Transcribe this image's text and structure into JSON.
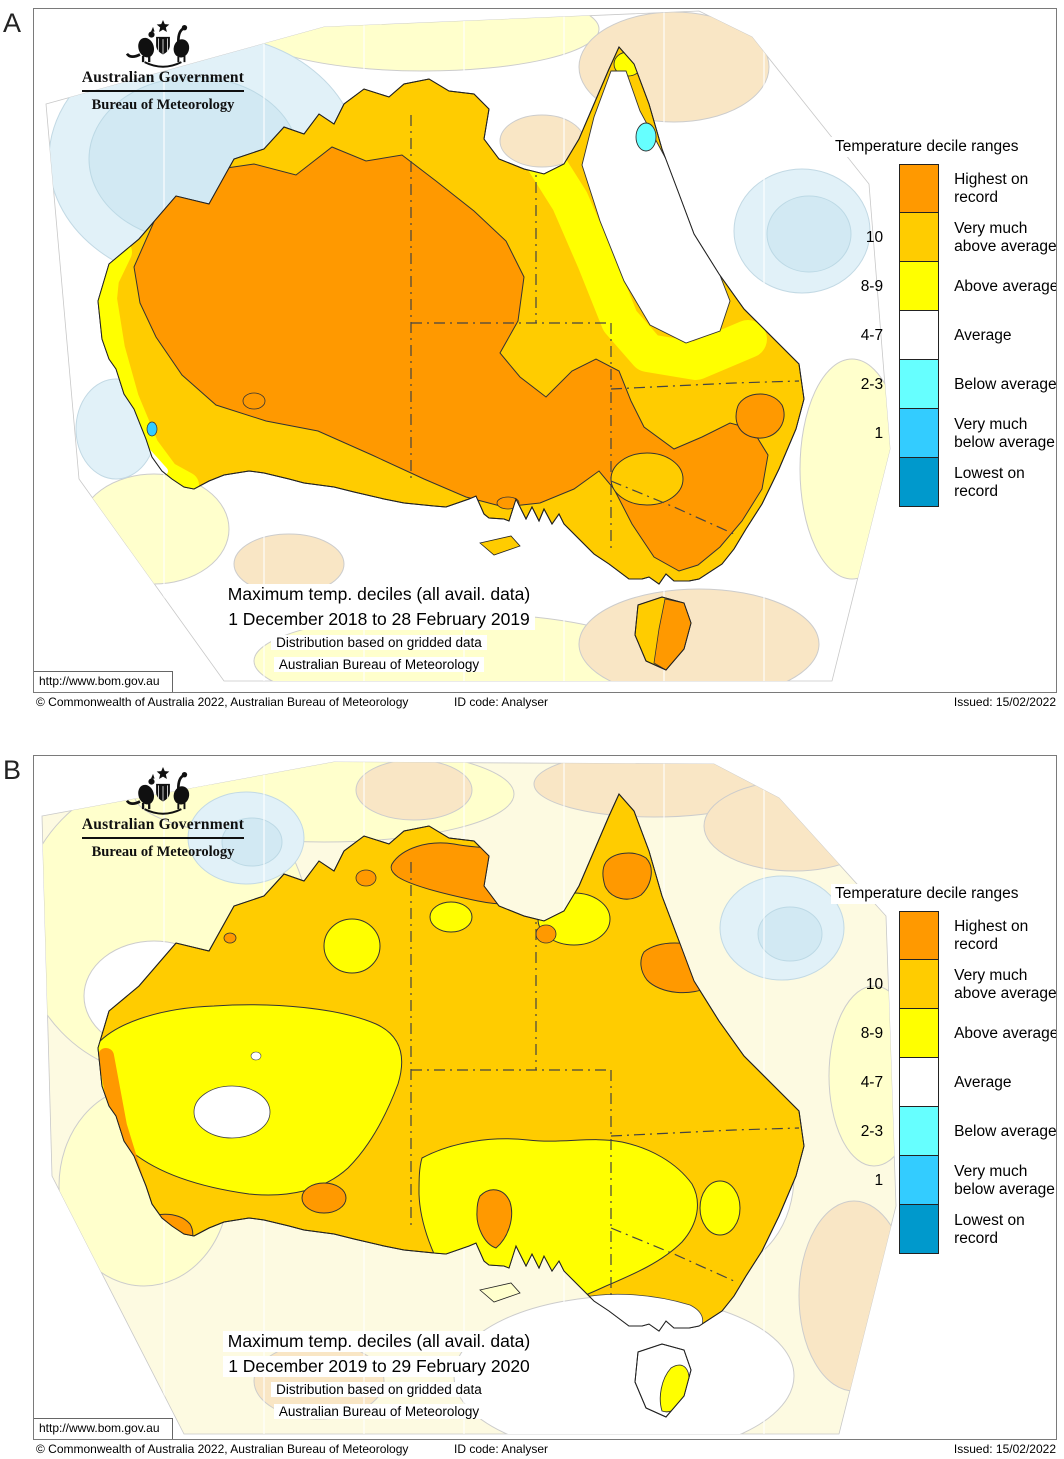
{
  "logo": {
    "line1": "Australian Government",
    "line2": "Bureau of Meteorology"
  },
  "legend": {
    "title": "Temperature decile ranges",
    "items": [
      {
        "decile": "",
        "label": "Highest on record",
        "key": "highest_on_record"
      },
      {
        "decile": "10",
        "label": "Very much above average",
        "key": "very_much_above_average"
      },
      {
        "decile": "8-9",
        "label": "Above average",
        "key": "above_average"
      },
      {
        "decile": "4-7",
        "label": "Average",
        "key": "average"
      },
      {
        "decile": "2-3",
        "label": "Below average",
        "key": "below_average"
      },
      {
        "decile": "1",
        "label": "Very much below average",
        "key": "very_much_below_average"
      },
      {
        "decile": "",
        "label": "Lowest on record",
        "key": "lowest_on_record"
      }
    ]
  },
  "palette": {
    "highest_on_record": "#FF9900",
    "very_much_above_average": "#FFCC00",
    "above_average": "#FFFF00",
    "average": "#FFFFFF",
    "below_average": "#66FFFF",
    "very_much_below_average": "#33CCFF",
    "lowest_on_record": "#0099CC",
    "ocean_above_faint": "#FFFFCC",
    "ocean_very_much_above_faint": "#F9E6C5",
    "ocean_below_faint": "#E1F1F8",
    "ocean_below_faint_inner": "#D2E9F3"
  },
  "panels": [
    {
      "label": "A",
      "title_line1": "Maximum temp. deciles (all avail. data)",
      "title_line2": "1 December 2018 to 28 February 2019",
      "title_line3": "Distribution based on gridded data",
      "title_line4": "Australian Bureau of Meteorology",
      "url": "http://www.bom.gov.au",
      "footer_copyright": "© Commonwealth of Australia 2022, Australian Bureau of Meteorology",
      "footer_idcode": "ID code: Analyser",
      "footer_issued": "Issued: 15/02/2022"
    },
    {
      "label": "B",
      "title_line1": "Maximum temp. deciles (all avail. data)",
      "title_line2": "1 December 2019 to 29 February 2020",
      "title_line3": "Distribution based on gridded data",
      "title_line4": "Australian Bureau of Meteorology",
      "url": "http://www.bom.gov.au",
      "footer_copyright": "© Commonwealth of Australia 2022, Australian Bureau of Meteorology",
      "footer_idcode": "ID code: Analyser",
      "footer_issued": "Issued: 15/02/2022"
    }
  ]
}
